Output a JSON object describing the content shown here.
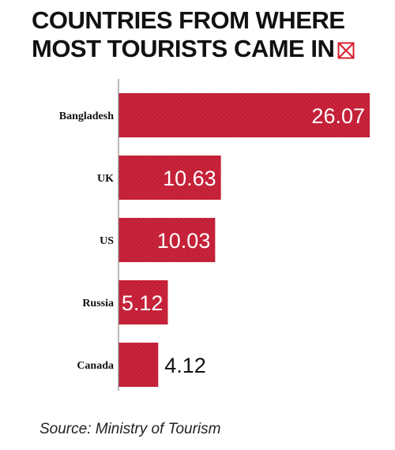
{
  "title": {
    "line1": "COUNTRIES FROM WHERE",
    "line2": "MOST TOURISTS CAME IN",
    "icon": "boxed-x-icon"
  },
  "source": "Source: Ministry of Tourism",
  "colors": {
    "bar": "#c8233a",
    "bar_texture": "#b01a2f",
    "inside_label": "#ffffff",
    "outside_label": "#111111",
    "axis": "#8a8a8a",
    "title_icon": "#d81e2c"
  },
  "chart_data": {
    "type": "bar",
    "orientation": "horizontal",
    "categories": [
      "Bangladesh",
      "UK",
      "US",
      "Russia",
      "Canada"
    ],
    "values": [
      26.07,
      10.63,
      10.03,
      5.12,
      4.12
    ],
    "value_labels": [
      "26.07",
      "10.63",
      "10.03",
      "5.12",
      "4.12"
    ],
    "labels_inside": [
      true,
      true,
      true,
      true,
      false
    ],
    "title": "COUNTRIES FROM WHERE MOST TOURISTS CAME IN",
    "xlabel": "",
    "ylabel": "",
    "xlim": [
      0,
      26.07
    ],
    "grid": false
  }
}
